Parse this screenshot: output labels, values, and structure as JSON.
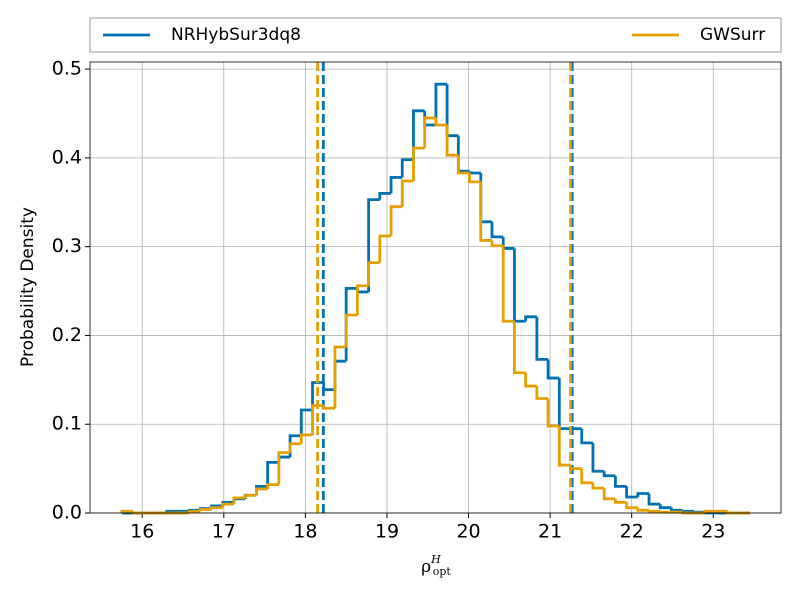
{
  "chart_data": {
    "type": "histogram",
    "ylabel": "Probability Density",
    "xlabel": {
      "base": "ρ",
      "sup": "H",
      "sub": "opt"
    },
    "bins": [
      15.75,
      15.8875,
      16.025,
      16.1625,
      16.3,
      16.4375,
      16.575,
      16.7125,
      16.85,
      16.9875,
      17.125,
      17.2625,
      17.4,
      17.5375,
      17.675,
      17.8125,
      17.95,
      18.0875,
      18.225,
      18.3625,
      18.5,
      18.6375,
      18.775,
      18.9125,
      19.05,
      19.1875,
      19.325,
      19.4625,
      19.6,
      19.7375,
      19.875,
      20.0125,
      20.15,
      20.2875,
      20.425,
      20.5625,
      20.7,
      20.8375,
      20.975,
      21.1125,
      21.25,
      21.3875,
      21.525,
      21.6625,
      21.8,
      21.9375,
      22.075,
      22.2125,
      22.35,
      22.4875,
      22.625,
      22.7625,
      22.9,
      23.0375,
      23.175,
      23.3125,
      23.45
    ],
    "series": [
      {
        "name": "NRHybSur3dq8",
        "color": "#0072b2",
        "vlines": [
          18.22,
          21.27
        ],
        "values": [
          0,
          0,
          0,
          0,
          0.002,
          0.002,
          0.003,
          0.005,
          0.008,
          0.012,
          0.016,
          0.02,
          0.03,
          0.057,
          0.063,
          0.087,
          0.116,
          0.147,
          0.139,
          0.171,
          0.253,
          0.249,
          0.353,
          0.36,
          0.378,
          0.398,
          0.453,
          0.437,
          0.483,
          0.425,
          0.385,
          0.383,
          0.328,
          0.311,
          0.298,
          0.216,
          0.221,
          0.173,
          0.152,
          0.095,
          0.095,
          0.079,
          0.047,
          0.042,
          0.03,
          0.018,
          0.022,
          0.01,
          0.006,
          0.003,
          0.002,
          0.001,
          0,
          0,
          0,
          0
        ]
      },
      {
        "name": "GWSurr",
        "color": "#e69f00",
        "vlines": [
          18.15,
          21.25
        ],
        "values": [
          0.002,
          0,
          0,
          0,
          0,
          0,
          0.002,
          0.004,
          0.006,
          0.01,
          0.017,
          0.02,
          0.027,
          0.032,
          0.068,
          0.078,
          0.088,
          0.121,
          0.118,
          0.187,
          0.223,
          0.256,
          0.282,
          0.312,
          0.345,
          0.374,
          0.411,
          0.445,
          0.437,
          0.403,
          0.383,
          0.373,
          0.307,
          0.301,
          0.216,
          0.158,
          0.143,
          0.129,
          0.098,
          0.054,
          0.05,
          0.034,
          0.028,
          0.016,
          0.012,
          0.006,
          0.003,
          0.002,
          0.001,
          0.001,
          0,
          0,
          0.002,
          0.002,
          0,
          0
        ]
      }
    ],
    "xlim": [
      15.36,
      23.83
    ],
    "ylim": [
      0,
      0.508
    ],
    "xticks": [
      16,
      17,
      18,
      19,
      20,
      21,
      22,
      23
    ],
    "yticks": [
      {
        "value": 0,
        "label": "0.0"
      },
      0.1,
      0.2,
      0.3,
      0.4,
      0.5
    ],
    "grid": true
  }
}
